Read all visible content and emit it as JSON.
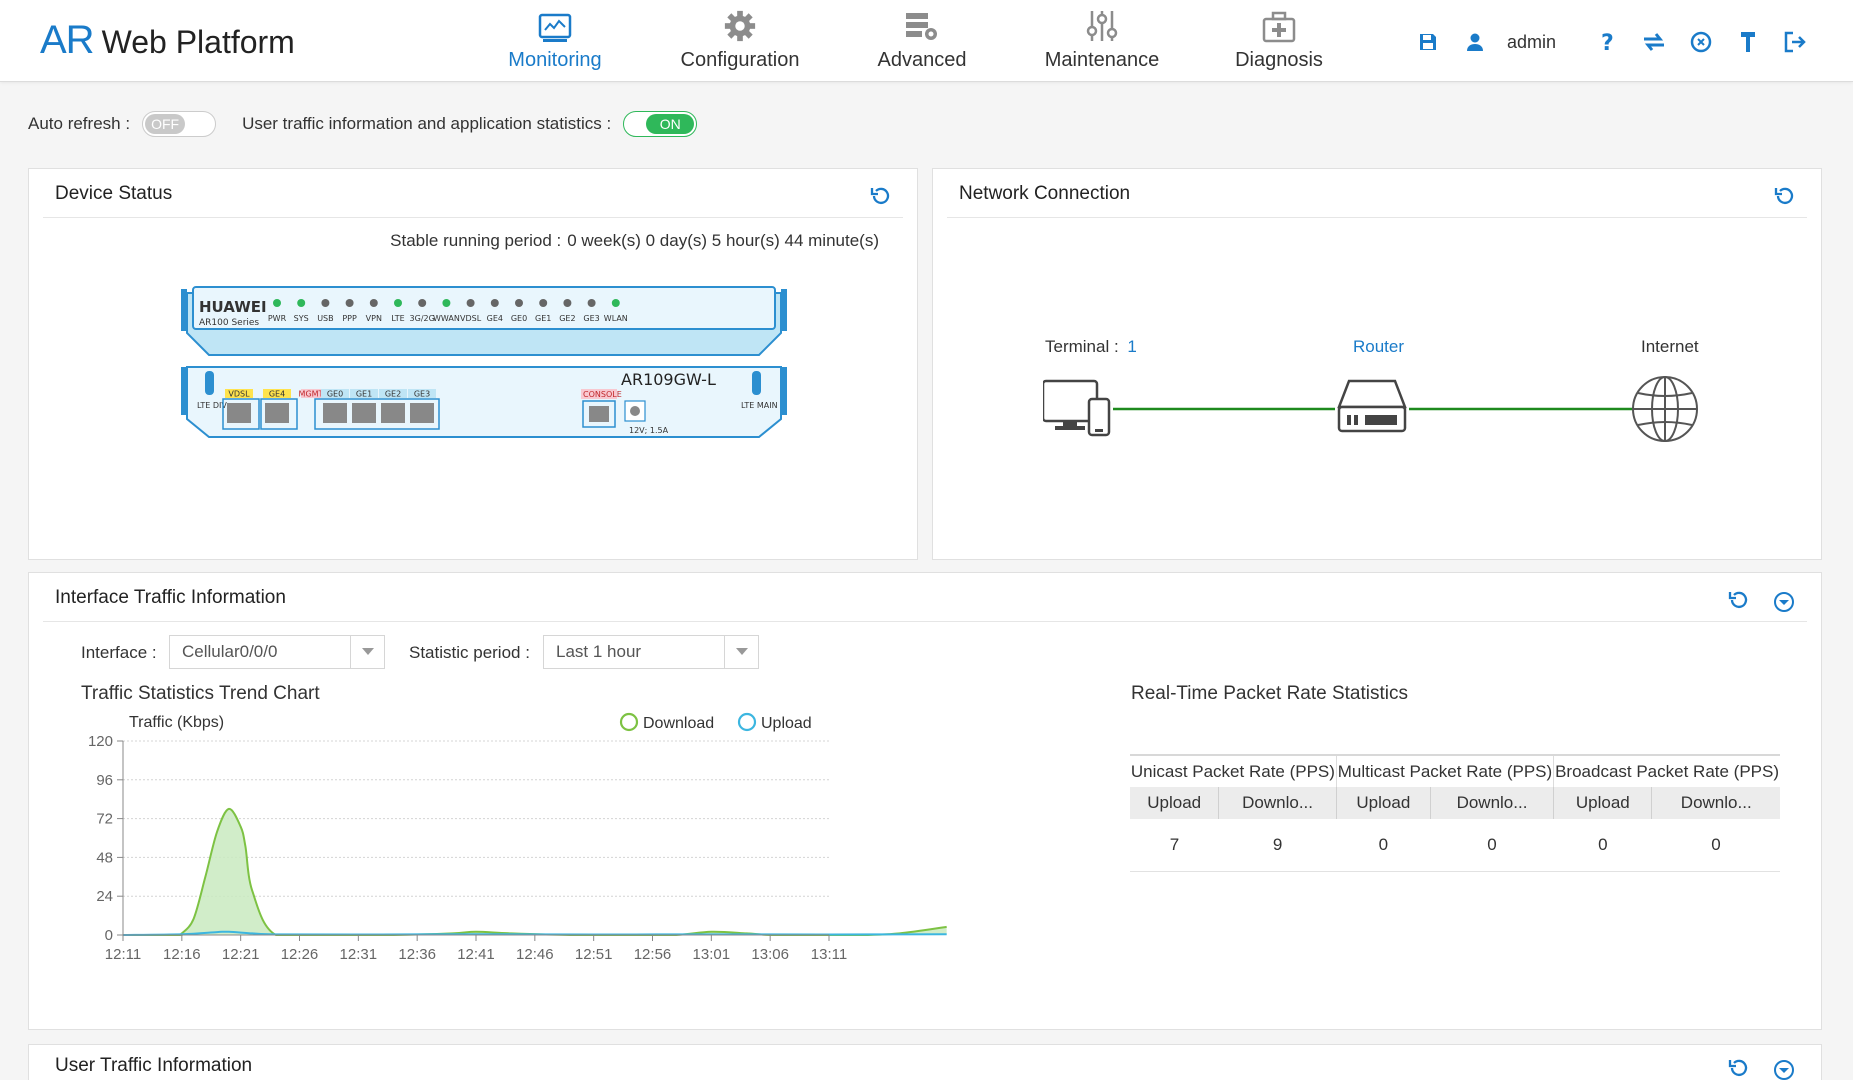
{
  "header": {
    "logo_ar": "AR",
    "logo_rest": "Web Platform",
    "nav": [
      {
        "label": "Monitoring",
        "active": true
      },
      {
        "label": "Configuration",
        "active": false
      },
      {
        "label": "Advanced",
        "active": false
      },
      {
        "label": "Maintenance",
        "active": false
      },
      {
        "label": "Diagnosis",
        "active": false
      }
    ],
    "user": "admin",
    "accent": "#1a7bc9"
  },
  "toolbar": {
    "auto_refresh_label": "Auto refresh :",
    "auto_refresh_state": "OFF",
    "user_traffic_label": "User traffic information and application statistics :",
    "user_traffic_state": "ON"
  },
  "device_status": {
    "title": "Device Status",
    "stable_label": "Stable running period :",
    "stable_value": "0 week(s) 0 day(s) 5 hour(s) 44 minute(s)",
    "brand": "HUAWEI",
    "series": "AR100 Series",
    "model": "AR109GW-L",
    "power": "12V; 1.5A",
    "leds": [
      {
        "label": "PWR",
        "on": true
      },
      {
        "label": "SYS",
        "on": true
      },
      {
        "label": "USB",
        "on": false
      },
      {
        "label": "PPP",
        "on": false
      },
      {
        "label": "VPN",
        "on": false
      },
      {
        "label": "LTE",
        "on": true
      },
      {
        "label": "3G/2G",
        "on": false
      },
      {
        "label": "WWAN",
        "on": true
      },
      {
        "label": "VDSL",
        "on": false
      },
      {
        "label": "GE4",
        "on": false
      },
      {
        "label": "GE0",
        "on": false
      },
      {
        "label": "GE1",
        "on": false
      },
      {
        "label": "GE2",
        "on": false
      },
      {
        "label": "GE3",
        "on": false
      },
      {
        "label": "WLAN",
        "on": true
      }
    ],
    "ports": {
      "lte_div": "LTE DIV",
      "lte_main": "LTE MAIN",
      "vdsl": "VDSL",
      "ge4": "GE4",
      "mgmt": "MGMT",
      "ge0": "GE0",
      "ge1": "GE1",
      "ge2": "GE2",
      "ge3": "GE3",
      "console": "CONSOLE"
    }
  },
  "network": {
    "title": "Network Connection",
    "terminal_label": "Terminal :",
    "terminal_count": "1",
    "router_label": "Router",
    "internet_label": "Internet"
  },
  "interface_traffic": {
    "title": "Interface Traffic Information",
    "interface_label": "Interface :",
    "interface_value": "Cellular0/0/0",
    "period_label": "Statistic period :",
    "period_value": "Last 1 hour",
    "chart_title": "Traffic Statistics Trend Chart",
    "rt_title": "Real-Time Packet Rate Statistics",
    "table": {
      "groups": [
        "Unicast Packet Rate (PPS)",
        "Multicast Packet Rate (PPS)",
        "Broadcast Packet Rate (PPS)"
      ],
      "sub": [
        "Upload",
        "Downlo...",
        "Upload",
        "Downlo...",
        "Upload",
        "Downlo..."
      ],
      "values": [
        "7",
        "9",
        "0",
        "0",
        "0",
        "0"
      ]
    }
  },
  "chart_data": {
    "type": "area",
    "ylabel": "Traffic (Kbps)",
    "ylim": [
      0,
      120
    ],
    "yticks": [
      0,
      24,
      48,
      72,
      96,
      120
    ],
    "categories": [
      "12:11",
      "12:16",
      "12:21",
      "12:26",
      "12:31",
      "12:36",
      "12:41",
      "12:46",
      "12:51",
      "12:56",
      "13:01",
      "13:06",
      "13:11"
    ],
    "series": [
      {
        "name": "Download",
        "color": "#7dc243",
        "fill": "#c9eac0",
        "x": [
          0,
          4.6,
          5,
          6,
          7,
          8,
          9,
          10,
          10.4,
          11,
          13,
          18,
          23,
          28,
          30,
          33,
          38,
          43,
          47,
          50,
          53,
          55,
          58,
          63,
          66,
          70
        ],
        "y": [
          0,
          0,
          1,
          10,
          36,
          64,
          78,
          67,
          55,
          27,
          0,
          0,
          0,
          1,
          2,
          1,
          0,
          0,
          0,
          2,
          1,
          0,
          0,
          0,
          1,
          5
        ]
      },
      {
        "name": "Upload",
        "color": "#3cb6e0",
        "x": [
          0,
          5,
          8,
          9,
          11,
          13,
          20,
          30,
          40,
          50,
          60,
          70
        ],
        "y": [
          0,
          0.5,
          1.8,
          2,
          1,
          0.4,
          0.3,
          0.5,
          0.3,
          0.4,
          0.3,
          0.5
        ]
      }
    ],
    "legend_position": "top-right",
    "grid": true
  }
}
